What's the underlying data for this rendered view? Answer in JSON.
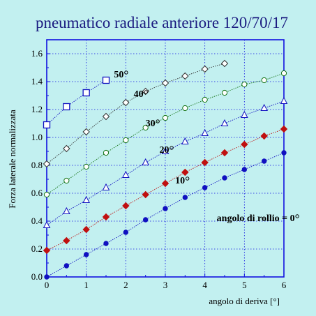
{
  "chart_data": {
    "type": "line",
    "title": "pneumatico radiale anteriore 120/70/17",
    "xlabel": "angolo di deriva [°]",
    "ylabel": "Forza laterale normalizzata",
    "xlim": [
      0,
      6
    ],
    "ylim": [
      0,
      1.7
    ],
    "xticks": [
      "0",
      "1",
      "2",
      "3",
      "4",
      "5",
      "6"
    ],
    "yticks": [
      "0.0",
      "0.2",
      "0.4",
      "0.6",
      "0.8",
      "1.0",
      "1.2",
      "1.4",
      "1.6"
    ],
    "grid": true,
    "series": [
      {
        "name": "angolo di rollio = 0°",
        "label_text": "angolo di rollio = 0",
        "marker": "circle-filled",
        "color": "#1010c0",
        "x": [
          0,
          0.5,
          1,
          1.5,
          2,
          2.5,
          3,
          3.5,
          4,
          4.5,
          5,
          5.5,
          6
        ],
        "y": [
          0.0,
          0.08,
          0.16,
          0.24,
          0.32,
          0.41,
          0.49,
          0.57,
          0.64,
          0.71,
          0.77,
          0.83,
          0.89
        ]
      },
      {
        "name": "10°",
        "label_text": "10",
        "marker": "diamond-filled",
        "color": "#c01010",
        "x": [
          0,
          0.5,
          1,
          1.5,
          2,
          2.5,
          3,
          3.5,
          4,
          4.5,
          5,
          5.5,
          6
        ],
        "y": [
          0.19,
          0.26,
          0.34,
          0.43,
          0.51,
          0.59,
          0.67,
          0.75,
          0.82,
          0.89,
          0.95,
          1.01,
          1.06
        ]
      },
      {
        "name": "20°",
        "label_text": "20",
        "marker": "triangle-open",
        "color": "#1010c0",
        "x": [
          0,
          0.5,
          1,
          1.5,
          2,
          2.5,
          3,
          3.5,
          4,
          4.5,
          5,
          5.5,
          6
        ],
        "y": [
          0.37,
          0.47,
          0.55,
          0.64,
          0.73,
          0.82,
          0.9,
          0.97,
          1.03,
          1.1,
          1.16,
          1.21,
          1.26
        ]
      },
      {
        "name": "30°",
        "label_text": "30",
        "marker": "circle-open",
        "color": "#107010",
        "x": [
          0,
          0.5,
          1,
          1.5,
          2,
          2.5,
          3,
          3.5,
          4,
          4.5,
          5,
          5.5,
          6
        ],
        "y": [
          0.59,
          0.69,
          0.79,
          0.89,
          0.98,
          1.07,
          1.14,
          1.21,
          1.27,
          1.32,
          1.38,
          1.41,
          1.46
        ]
      },
      {
        "name": "40°",
        "label_text": "40",
        "marker": "diamond-open",
        "color": "#303030",
        "x": [
          0,
          0.5,
          1,
          1.5,
          2,
          2.5,
          3,
          3.5,
          4,
          4.5
        ],
        "y": [
          0.81,
          0.92,
          1.04,
          1.15,
          1.25,
          1.33,
          1.39,
          1.44,
          1.49,
          1.53
        ]
      },
      {
        "name": "50°",
        "label_text": "50",
        "marker": "square-open",
        "color": "#1010c0",
        "x": [
          0,
          0.5,
          1,
          1.5
        ],
        "y": [
          1.09,
          1.22,
          1.32,
          1.41
        ]
      }
    ]
  },
  "colors": {
    "background": "#c2f0f0",
    "plot_border": "#1010e0",
    "grid": "#1010e0",
    "title": "#1a1a80"
  }
}
